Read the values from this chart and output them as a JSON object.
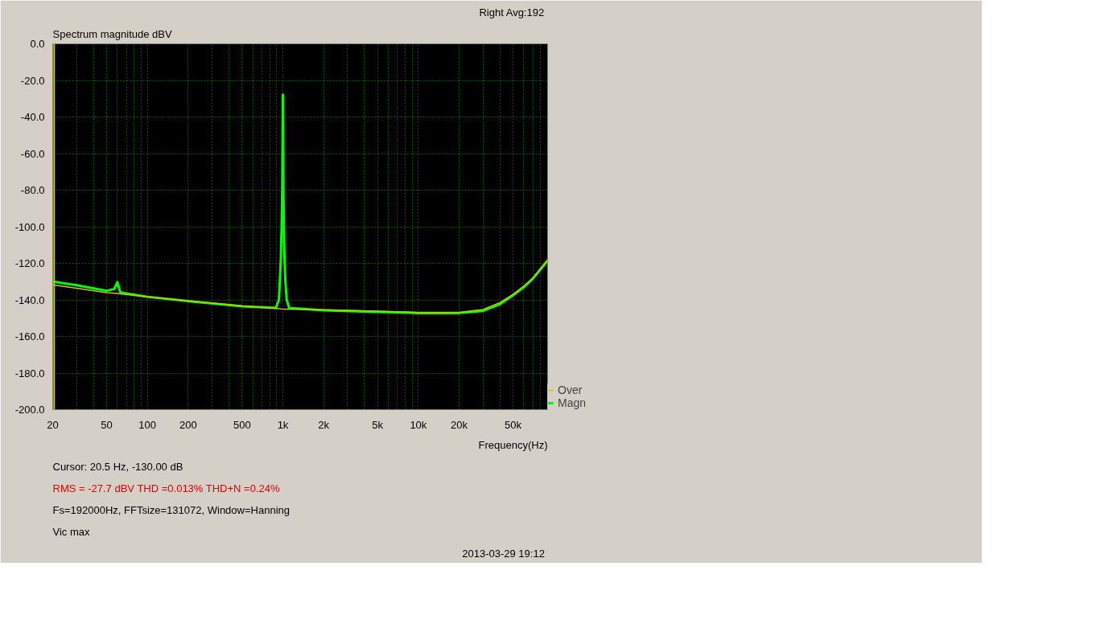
{
  "chart_data": {
    "type": "line",
    "ylabel": "Spectrum magnitude dBV",
    "xlabel": "Frequency(Hz)",
    "annotations": [
      "Right  Avg:192",
      "Cursor:    20.5 Hz, -130.00 dB",
      "RMS =  -27.7 dBV   THD =0.013%   THD+N =0.24%",
      "Fs=192000Hz, FFTsize=131072, Window=Hanning",
      "Vic max",
      "2013-03-29  19:12"
    ],
    "log": "x",
    "xlim": [
      20,
      90000
    ],
    "ylim": [
      -200,
      0
    ],
    "xticks": [
      20,
      {
        "value": 30,
        "label": null
      },
      {
        "value": 40,
        "label": null
      },
      50,
      {
        "value": 60,
        "label": null
      },
      {
        "value": 70,
        "label": null
      },
      {
        "value": 80,
        "label": null
      },
      {
        "value": 90,
        "label": null
      },
      100,
      200,
      {
        "value": 300,
        "label": null
      },
      {
        "value": 400,
        "label": null
      },
      500,
      {
        "value": 600,
        "label": null
      },
      {
        "value": 700,
        "label": null
      },
      {
        "value": 800,
        "label": null
      },
      {
        "value": 900,
        "label": null
      },
      {
        "value": 1000,
        "label": "1k"
      },
      {
        "value": 2000,
        "label": "2k"
      },
      {
        "value": 3000,
        "label": null
      },
      {
        "value": 4000,
        "label": null
      },
      {
        "value": 5000,
        "label": "5k"
      },
      {
        "value": 6000,
        "label": null
      },
      {
        "value": 7000,
        "label": null
      },
      {
        "value": 8000,
        "label": null
      },
      {
        "value": 9000,
        "label": null
      },
      {
        "value": 10000,
        "label": "10k"
      },
      {
        "value": 20000,
        "label": "20k"
      },
      {
        "value": 30000,
        "label": null
      },
      {
        "value": 40000,
        "label": null
      },
      {
        "value": 50000,
        "label": "50k"
      },
      {
        "value": 60000,
        "label": null
      },
      {
        "value": 70000,
        "label": null
      },
      {
        "value": 80000,
        "label": null
      }
    ],
    "yticks": [
      {
        "value": 0,
        "label": "0.0"
      },
      {
        "value": -20,
        "label": "-20.0"
      },
      {
        "value": -40,
        "label": "-40.0"
      },
      {
        "value": -60,
        "label": "-60.0"
      },
      {
        "value": -80,
        "label": "-80.0"
      },
      {
        "value": -100,
        "label": "-100.0"
      },
      {
        "value": -120,
        "label": "-120.0"
      },
      {
        "value": -140,
        "label": "-140.0"
      },
      {
        "value": -160,
        "label": "-160.0"
      },
      {
        "value": -180,
        "label": "-180.0"
      },
      {
        "value": -200,
        "label": "-200.0"
      }
    ],
    "grid": true,
    "legend": "bottom right",
    "ref_lines": [
      {
        "axis": "x",
        "value": 20.5,
        "color": "#c8c800"
      }
    ],
    "series": [
      {
        "name": "Over",
        "color": "#c8c800",
        "x": [
          20,
          30,
          50,
          60,
          100,
          200,
          500,
          887,
          1000,
          1112,
          2000,
          5000,
          10000,
          20000,
          30000,
          40000,
          50000,
          60000,
          70000,
          90000
        ],
        "values": [
          -131.8,
          -133.6,
          -136,
          -136.5,
          -138.3,
          -140.5,
          -143.3,
          -144.6,
          -145,
          -145,
          -145.4,
          -146.2,
          -146.8,
          -146.8,
          -145.3,
          -141.5,
          -137,
          -132.5,
          -128,
          -118
        ]
      },
      {
        "name": "Magn",
        "color": "#00ff00",
        "x": [
          20,
          30,
          50,
          57,
          60,
          63,
          70,
          100,
          200,
          500,
          887,
          934,
          950,
          965,
          978,
          989,
          1000,
          1009,
          1018,
          1029,
          1043,
          1067,
          1112,
          2000,
          5000,
          10000,
          20000,
          30000,
          40000,
          50000,
          60000,
          70000,
          90000
        ],
        "values": [
          -130,
          -132,
          -135,
          -134,
          -130.3,
          -135.8,
          -136.5,
          -138.3,
          -140.7,
          -143.5,
          -144.4,
          -140,
          -129.6,
          -118,
          -101,
          -79.6,
          -27.8,
          -79.6,
          -101,
          -118,
          -129.6,
          -140,
          -144.4,
          -145.7,
          -146.6,
          -147.2,
          -147.2,
          -146,
          -142.3,
          -137.5,
          -133,
          -128.4,
          -118.6
        ]
      }
    ]
  }
}
